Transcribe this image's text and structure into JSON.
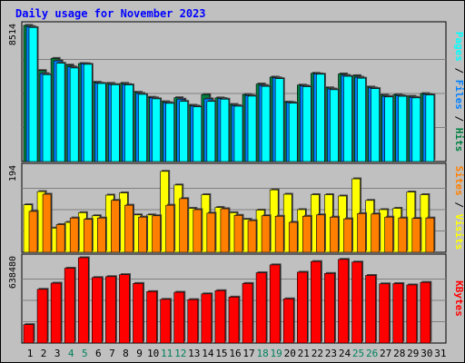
{
  "chart_data": {
    "type": "bar",
    "title": "Daily usage for November 2023",
    "categories": [
      "1",
      "2",
      "3",
      "4",
      "5",
      "6",
      "7",
      "8",
      "9",
      "10",
      "11",
      "12",
      "13",
      "14",
      "15",
      "16",
      "17",
      "18",
      "19",
      "20",
      "21",
      "22",
      "23",
      "24",
      "25",
      "26",
      "27",
      "28",
      "29",
      "30",
      "31"
    ],
    "weekend_days": [
      "4",
      "5",
      "11",
      "12",
      "18",
      "19",
      "25",
      "26"
    ],
    "panels": [
      {
        "axis_label": "8514",
        "ylim": [
          0,
          8514
        ],
        "legend": [
          "Pages",
          "Files",
          "Hits"
        ],
        "series": [
          {
            "name": "Hits",
            "color": "#008040",
            "values": [
              8514,
              5690,
              6450,
              6030,
              6130,
              4960,
              4890,
              4890,
              4330,
              4020,
              3740,
              3990,
              3520,
              4190,
              3980,
              3570,
              4190,
              4850,
              5280,
              3720,
              4780,
              5520,
              4610,
              5480,
              5370,
              4660,
              4150,
              4180,
              4080,
              4250,
              null
            ]
          },
          {
            "name": "Files",
            "color": "#0080ff",
            "values": [
              8440,
              5500,
              6300,
              5920,
              6120,
              4900,
              4820,
              4820,
              4260,
              3980,
              3680,
              3900,
              3470,
              3920,
              3940,
              3500,
              4130,
              4760,
              5230,
              3690,
              4730,
              5480,
              4540,
              5390,
              5270,
              4600,
              4080,
              4120,
              4020,
              4200,
              null
            ]
          },
          {
            "name": "Pages",
            "color": "#00ffff",
            "values": [
              8380,
              5430,
              6150,
              5850,
              6080,
              4880,
              4800,
              4790,
              4200,
              3920,
              3640,
              3760,
              3420,
              3760,
              3900,
              3460,
              4090,
              4700,
              5180,
              3650,
              4680,
              5460,
              4490,
              5330,
              5210,
              4560,
              4040,
              4080,
              3980,
              4160,
              null
            ]
          }
        ]
      },
      {
        "axis_label": "194",
        "ylim": [
          0,
          194
        ],
        "legend": [
          "Sites",
          "Visits"
        ],
        "series": [
          {
            "name": "Visits",
            "color": "#ffff00",
            "values": [
              108,
              138,
              55,
              68,
              90,
              83,
              130,
              135,
              85,
              85,
              184,
              153,
              100,
              131,
              102,
              90,
              75,
              96,
              142,
              132,
              97,
              131,
              131,
              128,
              167,
              118,
              97,
              100,
              137,
              131,
              null
            ]
          },
          {
            "name": "Sites",
            "color": "#ff8000",
            "values": [
              93,
              132,
              63,
              78,
              75,
              78,
              118,
              107,
              80,
              83,
              107,
              122,
              97,
              89,
              99,
              84,
              72,
              83,
              82,
              68,
              82,
              85,
              80,
              76,
              88,
              87,
              80,
              78,
              77,
              78,
              null
            ]
          }
        ]
      },
      {
        "axis_label": "638480",
        "ylim": [
          0,
          638480
        ],
        "legend": [
          "KBytes"
        ],
        "series": [
          {
            "name": "KBytes",
            "color": "#ff0000",
            "values": [
              138000,
              402000,
              448000,
              560000,
              638480,
              490000,
              497000,
              512000,
              446000,
              385000,
              327000,
              380000,
              325000,
              368000,
              392000,
              344000,
              446000,
              526000,
              585000,
              331000,
              530000,
              610000,
              521000,
              626000,
              606000,
              506000,
              443000,
              445000,
              435000,
              454000,
              null
            ]
          }
        ]
      }
    ],
    "colors": {
      "background": "#c0c0c0",
      "plot_background": "#c0c0c0",
      "grid": "#808080",
      "title": "#0000ff",
      "weekday_label": "#000000",
      "weekend_label": "#00805c"
    }
  }
}
